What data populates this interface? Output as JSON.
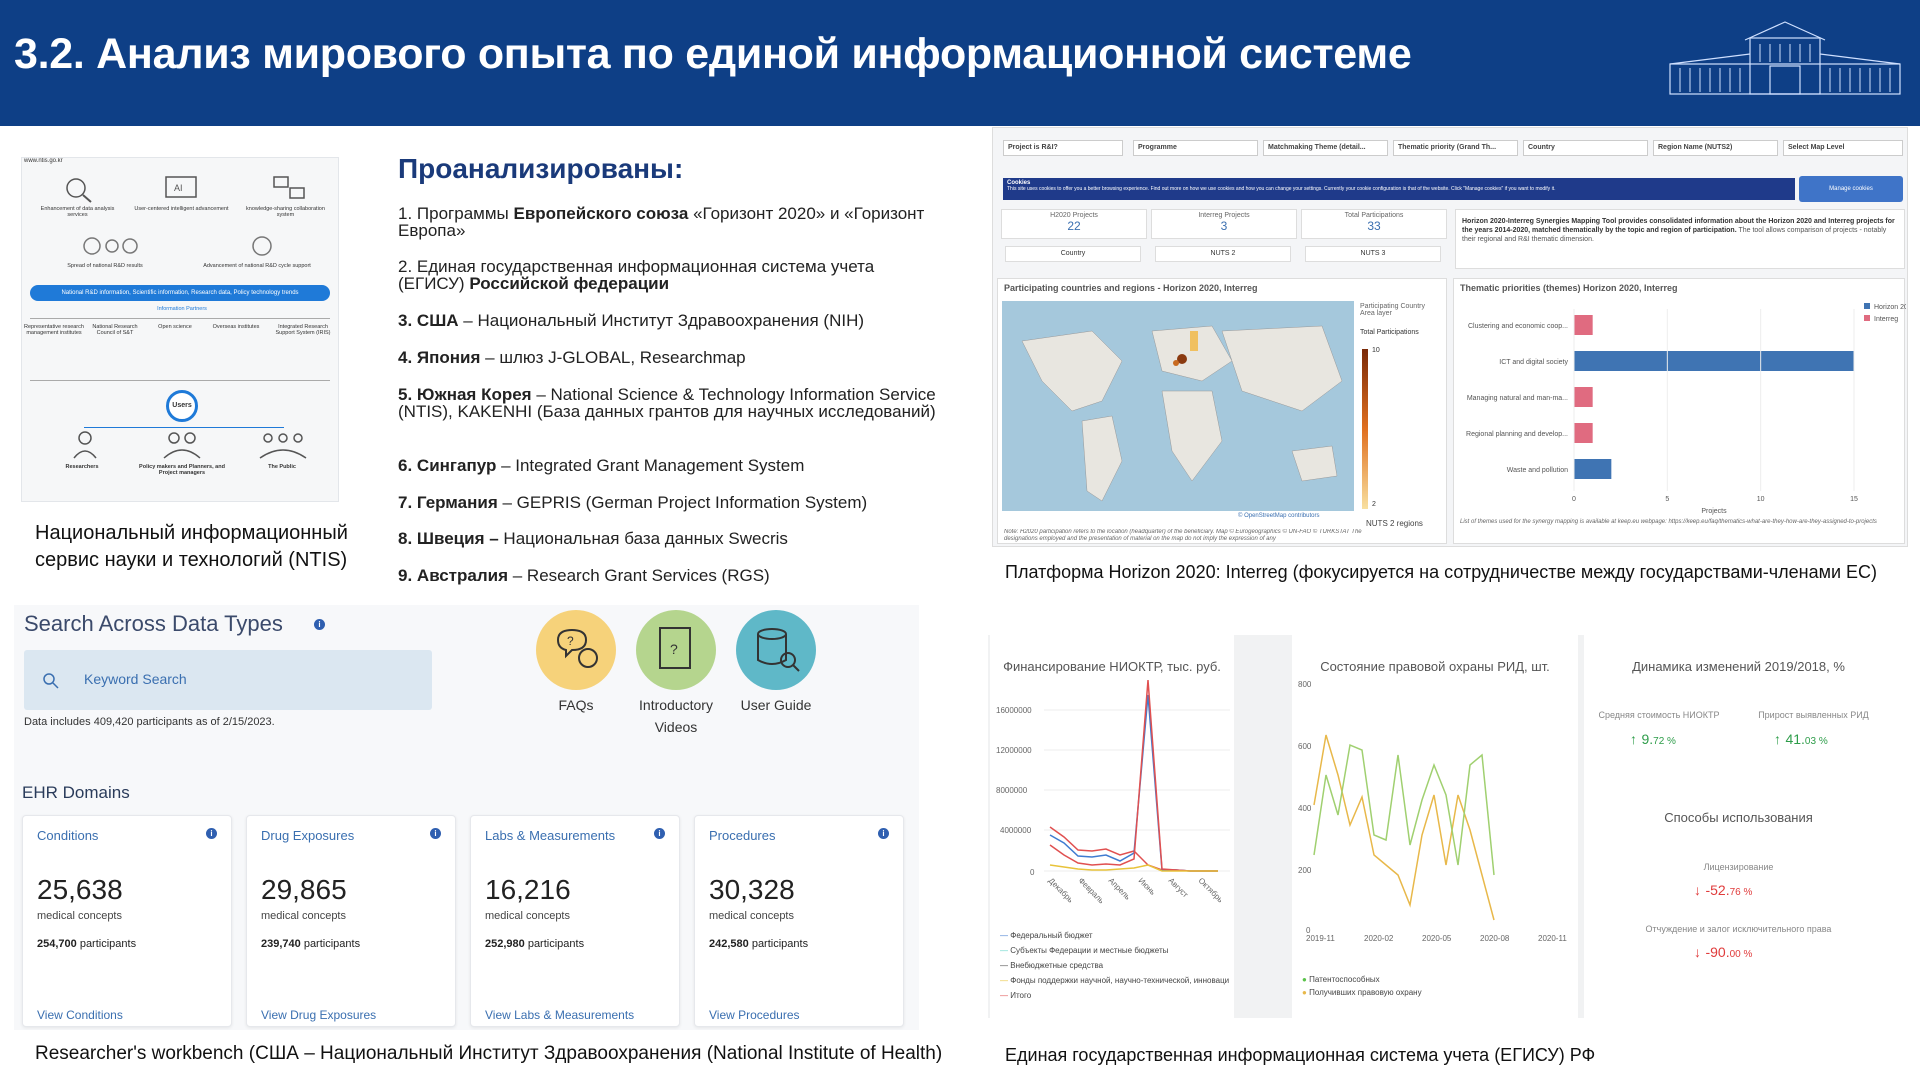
{
  "header": {
    "title": "3.2. Анализ мирового опыта по единой информационной системе"
  },
  "ntis": {
    "url": "www.ntis.go.kr",
    "top_items": [
      "Enhancement of data analysis services",
      "User-centered intelligent advancement",
      "knowledge-sharing collaboration system"
    ],
    "mid_items": [
      "Spread of national R&D results",
      "Advancement of national R&D cycle support"
    ],
    "bar": "National R&D information, Scientific information, Research data, Policy technology trends",
    "partners_label": "Information Partners",
    "partners": [
      "Representative research management institutes",
      "National Research Council of S&T",
      "Open science",
      "Overseas institutes",
      "Integrated Research Support System (IRIS)"
    ],
    "users_label": "Users",
    "user_groups": [
      "Researchers",
      "Policy makers and Planners, and Project managers",
      "The Public"
    ],
    "caption_line1": "Национальный информационный",
    "caption_line2": "сервис науки и технологий (NTIS)"
  },
  "analysis": {
    "title": "Проанализированы:",
    "items": [
      {
        "num": "1.",
        "bold": "",
        "pre": "Программы ",
        "bold_mid": "Европейского союза",
        "post": " «Горизонт 2020» и «Горизонт Европа»"
      },
      {
        "num": "2.",
        "pre": "Единая государственная информационная система учета (ЕГИСУ) ",
        "bold_mid": "Российской федерации",
        "post": ""
      },
      {
        "num": "3.",
        "bold_mid": "США",
        "post": " – Национальный Институт Здравоохранения (NIH)"
      },
      {
        "num": "4.",
        "bold_mid": "Япония",
        "post": " – шлюз J-GLOBAL, Researchmap"
      },
      {
        "num": "5.",
        "bold_mid": "Южная Корея",
        "post": " – National Science & Technology Information Service (NTIS), KAKENHI (База данных грантов для научных исследований)"
      },
      {
        "num": "6.",
        "bold_mid": "Сингапур",
        "post": " – Integrated Grant Management System"
      },
      {
        "num": "7.",
        "bold_mid": "Германия",
        "post": " – GEPRIS (German Project Information System)"
      },
      {
        "num": "8.",
        "bold_mid": "Швеция –",
        "post": " Национальная база данных Swecris"
      },
      {
        "num": "9.",
        "bold_mid": "Австралия",
        "post": " – Research Grant Services (RGS)"
      }
    ]
  },
  "horizon": {
    "filters": [
      "Project is R&I?",
      "Programme",
      "Matchmaking Theme (detail...",
      "Thematic priority (Grand Th...",
      "Country",
      "Region Name (NUTS2)",
      "Select Map Level"
    ],
    "cookies_title": "Cookies",
    "cookies_text": "This site uses cookies to offer you a better browsing experience. Find out more on how we use cookies and how you can change your settings. Currently your cookie configuration is that of the website. Click \"Manage cookies\" if you want to modify it.",
    "manage_cookies": "Manage cookies",
    "kpis": [
      {
        "label": "H2020 Projects",
        "value": "22"
      },
      {
        "label": "Interreg Projects",
        "value": "3"
      },
      {
        "label": "Total Participations",
        "value": "33"
      }
    ],
    "level_buttons": [
      "Country",
      "NUTS 2",
      "NUTS 3"
    ],
    "desc_bold": "Horizon 2020-Interreg Synergies Mapping Tool provides consolidated information about the Horizon 2020 and Interreg projects for the years 2014-2020, matched thematically by the topic and region of participation.",
    "desc_rest": " The tool allows comparison of projects - notably their regional and R&I thematic dimension.",
    "map_title": "Participating countries and regions - Horizon 2020, Interreg",
    "map_legend_title": "Participating Country Area layer",
    "map_legend_sub": "Total Participations",
    "map_legend_max": "10",
    "map_legend_min": "2",
    "map_regions": "NUTS 2 regions",
    "map_attrib": "© OpenStreetMap contributors",
    "map_note": "Note: H2020 participation refers to the location (headquarter) of the beneficiary. Map © Eurogeographics © UN-FAO © TURKSTAT The designations employed and the presentation of material on the map do not imply the expression of any",
    "themes_title": "Thematic priorities (themes) Horizon 2020, Interreg",
    "themes_legend": [
      "Horizon 2020",
      "Interreg"
    ],
    "themes_note": "List of themes used for the synergy mapping is available at keep.eu webpage: https://keep.eu/faq/thematics-what-are-they-how-are-they-assigned-to-projects",
    "caption": "Платформа Horizon 2020: Interreg (фокусируется на сотрудничестве между государствами-членами ЕС)"
  },
  "themes_chart": {
    "type": "bar",
    "categories": [
      "Clustering and economic coop...",
      "ICT and digital society",
      "Managing natural and man-ma...",
      "Regional planning and develop...",
      "Waste and pollution"
    ],
    "series": [
      {
        "name": "Horizon 2020",
        "values": [
          0,
          15,
          0,
          0,
          2
        ],
        "color": "#3f74b3"
      },
      {
        "name": "Interreg",
        "values": [
          1,
          0,
          1,
          1,
          0
        ],
        "color": "#e06b80"
      }
    ],
    "xlim": [
      0,
      15
    ],
    "xticks": [
      "0",
      "5",
      "10",
      "15"
    ],
    "xlabel": "Projects"
  },
  "researcher": {
    "search_title": "Search Across Data Types",
    "search_placeholder": "Keyword Search",
    "data_note": "Data includes 409,420 participants as of 2/15/2023.",
    "faqs": "FAQs",
    "intro_line1": "Introductory",
    "intro_line2": "Videos",
    "guide": "User Guide",
    "domains_title": "EHR Domains",
    "cards": [
      {
        "title": "Conditions",
        "num": "25,638",
        "sub": "medical concepts",
        "part_num": "254,700",
        "part_lbl": " participants",
        "link": "View Conditions"
      },
      {
        "title": "Drug Exposures",
        "num": "29,865",
        "sub": "medical concepts",
        "part_num": "239,740",
        "part_lbl": " participants",
        "link": "View Drug Exposures"
      },
      {
        "title": "Labs & Measurements",
        "num": "16,216",
        "sub": "medical concepts",
        "part_num": "252,980",
        "part_lbl": " participants",
        "link": "View Labs & Measurements"
      },
      {
        "title": "Procedures",
        "num": "30,328",
        "sub": "medical concepts",
        "part_num": "242,580",
        "part_lbl": " participants",
        "link": "View Procedures"
      }
    ],
    "caption": "Researcher's workbench (США – Национальный Институт Здравоохранения (National Institute of Health)"
  },
  "egisu": {
    "fin_title": "Финансирование НИОКТР, тыс. руб.",
    "fin_yticks": [
      "16000000",
      "12000000",
      "8000000",
      "4000000",
      "0"
    ],
    "fin_xticks": [
      "Декабрь",
      "Февраль",
      "Апрель",
      "Июнь",
      "Август",
      "Октябрь"
    ],
    "fin_legend": [
      {
        "name": "Федеральный бюджет",
        "color": "#3f7bd0"
      },
      {
        "name": "Субъекты Федерации и местные бюджеты",
        "color": "#5fd3c8"
      },
      {
        "name": "Внебюджетные средства",
        "color": "#444444"
      },
      {
        "name": "Фонды поддержки научной, научно-технической, инноваци",
        "color": "#e8c33a"
      },
      {
        "name": "Итого",
        "color": "#e05050"
      }
    ],
    "rid_title": "Состояние правовой охраны РИД, шт.",
    "rid_yticks": [
      "800",
      "600",
      "400",
      "200",
      "0"
    ],
    "rid_xticks": [
      "2019-11",
      "2020-02",
      "2020-05",
      "2020-08",
      "2020-11"
    ],
    "rid_legend": [
      {
        "name": "Патентоспособных",
        "color": "#5ac24a"
      },
      {
        "name": "Получивших правовую охрану",
        "color": "#e8b84a"
      }
    ],
    "dyn_title": "Динамика изменений 2019/2018, %",
    "dyn_labels": [
      "Средняя стоимость НИОКТР",
      "Прирост выявленных РИД"
    ],
    "dyn_values": [
      {
        "int": "9.",
        "dec": "72 %",
        "color": "#2e9d4a",
        "arrow": "↑"
      },
      {
        "int": "41.",
        "dec": "03 %",
        "color": "#2e9d4a",
        "arrow": "↑"
      }
    ],
    "use_title": "Способы использования",
    "use_items": [
      {
        "label": "Лицензирование",
        "int": "-52.",
        "dec": "76 %",
        "arrow": "↓",
        "color": "#e03c3c"
      },
      {
        "label": "Отчуждение и залог исключительного права",
        "int": "-90.",
        "dec": "00 %",
        "arrow": "↓",
        "color": "#e03c3c"
      }
    ],
    "caption": "Единая государственная информационная система учета (ЕГИСУ) РФ"
  }
}
